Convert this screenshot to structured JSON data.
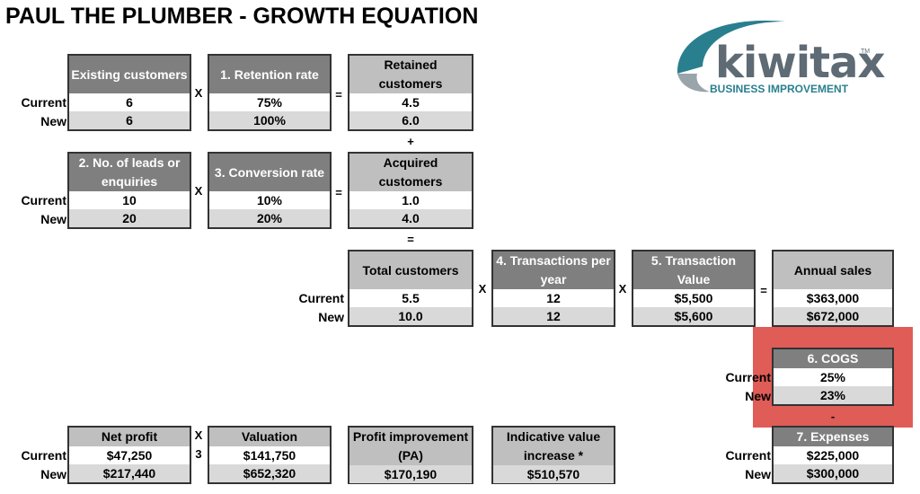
{
  "title": "PAUL THE PLUMBER - GROWTH EQUATION",
  "logo": {
    "name": "kiwitax",
    "tagline": "BUSINESS IMPROVEMENT",
    "tm": "TM"
  },
  "row_labels": {
    "current": "Current",
    "new": "New"
  },
  "ops": {
    "times": "X",
    "equals": "=",
    "plus": "+",
    "minus": "-",
    "multiplier": "3"
  },
  "boxes": {
    "existing_customers": {
      "label": "Existing customers",
      "current": "6",
      "new": "6"
    },
    "retention_rate": {
      "label": "1. Retention rate",
      "current": "75%",
      "new": "100%"
    },
    "retained_customers": {
      "label": "Retained customers",
      "current": "4.5",
      "new": "6.0"
    },
    "leads": {
      "label": "2. No. of leads or enquiries",
      "current": "10",
      "new": "20"
    },
    "conversion_rate": {
      "label": "3. Conversion rate",
      "current": "10%",
      "new": "20%"
    },
    "acquired_customers": {
      "label": "Acquired customers",
      "current": "1.0",
      "new": "4.0"
    },
    "total_customers": {
      "label": "Total customers",
      "current": "5.5",
      "new": "10.0"
    },
    "transactions_per_year": {
      "label": "4. Transactions per year",
      "current": "12",
      "new": "12"
    },
    "transaction_value": {
      "label": "5. Transaction Value",
      "current": "$5,500",
      "new": "$5,600"
    },
    "annual_sales": {
      "label": "Annual sales",
      "current": "$363,000",
      "new": "$672,000"
    },
    "cogs": {
      "label": "6. COGS",
      "current": "25%",
      "new": "23%"
    },
    "expenses": {
      "label": "7. Expenses",
      "current": "$225,000",
      "new": "$300,000"
    },
    "net_profit": {
      "label": "Net profit",
      "current": "$47,250",
      "new": "$217,440"
    },
    "valuation": {
      "label": "Valuation",
      "current": "$141,750",
      "new": "$652,320"
    },
    "profit_improvement": {
      "label": "Profit improvement (PA)",
      "value": "$170,190"
    },
    "indicative_value": {
      "label": "Indicative value increase *",
      "value": "$510,570"
    }
  }
}
